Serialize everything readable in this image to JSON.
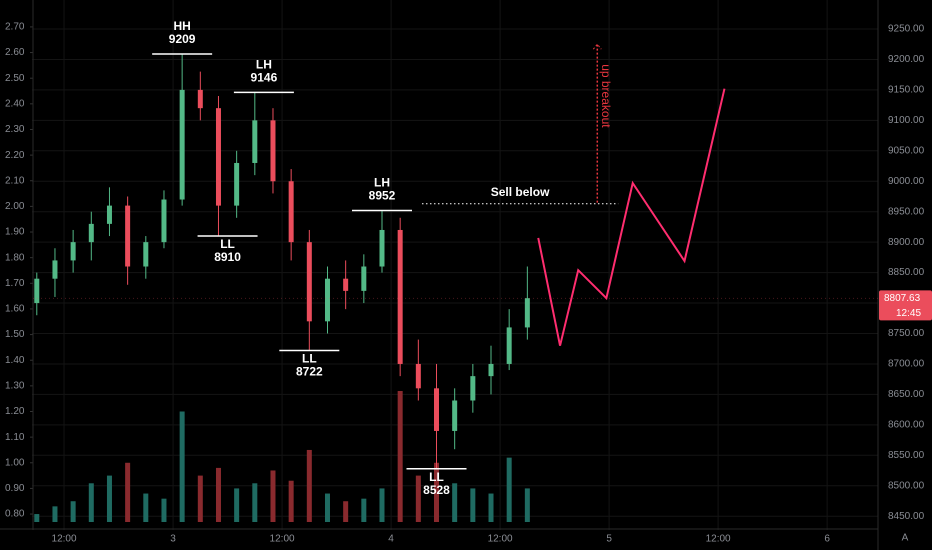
{
  "chart_data": {
    "type": "candlestick",
    "x": [
      -3,
      -1,
      1,
      3,
      5,
      7,
      9,
      11,
      13,
      15,
      17,
      19,
      21,
      23,
      25,
      27,
      29,
      31,
      33,
      35,
      37,
      39,
      41,
      43,
      45,
      47,
      49,
      51
    ],
    "open": [
      8800,
      8840,
      8870,
      8900,
      8930,
      8960,
      8860,
      8900,
      8970,
      9150,
      9120,
      8960,
      9030,
      9100,
      9000,
      8900,
      8770,
      8840,
      8820,
      8860,
      8920,
      8700,
      8660,
      8590,
      8640,
      8680,
      8700,
      8760
    ],
    "high": [
      8850,
      8890,
      8920,
      8950,
      8990,
      8975,
      8910,
      8985,
      9209,
      9180,
      9140,
      9050,
      9146,
      9120,
      9020,
      8920,
      8860,
      8870,
      8880,
      8952,
      8940,
      8740,
      8700,
      8660,
      8700,
      8730,
      8790,
      8860
    ],
    "low": [
      8780,
      8810,
      8850,
      8870,
      8910,
      8830,
      8840,
      8890,
      8960,
      9100,
      8910,
      8940,
      9010,
      8980,
      8870,
      8722,
      8750,
      8790,
      8800,
      8850,
      8680,
      8640,
      8528,
      8560,
      8620,
      8650,
      8690,
      8740
    ],
    "close": [
      8840,
      8870,
      8900,
      8930,
      8960,
      8860,
      8900,
      8970,
      9150,
      9120,
      8960,
      9030,
      9100,
      9000,
      8900,
      8770,
      8840,
      8820,
      8860,
      8920,
      8700,
      8660,
      8590,
      8640,
      8680,
      8700,
      8760,
      8808
    ],
    "volume": [
      0.8,
      0.83,
      0.85,
      0.92,
      0.95,
      1.0,
      0.88,
      0.86,
      1.2,
      0.95,
      0.98,
      0.9,
      0.92,
      0.97,
      0.93,
      1.05,
      0.88,
      0.85,
      0.86,
      0.9,
      1.28,
      0.95,
      1.0,
      0.92,
      0.9,
      0.88,
      1.02,
      0.9
    ],
    "up_color": "#53b987",
    "down_color": "#eb4d5c",
    "volume_up_color": "#1f6b62",
    "volume_down_color": "#8a2a2e",
    "xlim": [
      -7.05,
      89.6
    ],
    "xticks": [
      {
        "value": 0,
        "label": "12:00"
      },
      {
        "value": 12,
        "label": "3"
      },
      {
        "value": 24,
        "label": "12:00"
      },
      {
        "value": 36,
        "label": "4"
      },
      {
        "value": 48,
        "label": "12:00"
      },
      {
        "value": 60,
        "label": "5"
      },
      {
        "value": 72,
        "label": "12:00"
      },
      {
        "value": 84,
        "label": "6"
      }
    ],
    "ylim": [
      8440.5,
      9297.6
    ],
    "yticks": [
      {
        "value": 8450,
        "label": "8450.00"
      },
      {
        "value": 8500,
        "label": "8500.00"
      },
      {
        "value": 8550,
        "label": "8550.00"
      },
      {
        "value": 8600,
        "label": "8600.00"
      },
      {
        "value": 8650,
        "label": "8650.00"
      },
      {
        "value": 8700,
        "label": "8700.00"
      },
      {
        "value": 8750,
        "label": "8750.00"
      },
      {
        "value": 8800,
        "label": "8800.00"
      },
      {
        "value": 8850,
        "label": "8850.00"
      },
      {
        "value": 8900,
        "label": "8900.00"
      },
      {
        "value": 8950,
        "label": "8950.00"
      },
      {
        "value": 9000,
        "label": "9000.00"
      },
      {
        "value": 9050,
        "label": "9050.00"
      },
      {
        "value": 9100,
        "label": "9100.00"
      },
      {
        "value": 9150,
        "label": "9150.00"
      },
      {
        "value": 9200,
        "label": "9200.00"
      },
      {
        "value": 9250,
        "label": "9250.00"
      }
    ],
    "y2lim": [
      0.769,
      2.805
    ],
    "y2ticks": [
      {
        "value": 0.8,
        "label": "0.80"
      },
      {
        "value": 0.9,
        "label": "0.90"
      },
      {
        "value": 1.0,
        "label": "1.00"
      },
      {
        "value": 1.1,
        "label": "1.10"
      },
      {
        "value": 1.2,
        "label": "1.20"
      },
      {
        "value": 1.3,
        "label": "1.30"
      },
      {
        "value": 1.4,
        "label": "1.40"
      },
      {
        "value": 1.5,
        "label": "1.50"
      },
      {
        "value": 1.6,
        "label": "1.60"
      },
      {
        "value": 1.7,
        "label": "1.70"
      },
      {
        "value": 1.8,
        "label": "1.80"
      },
      {
        "value": 1.9,
        "label": "1.90"
      },
      {
        "value": 2.0,
        "label": "2.00"
      },
      {
        "value": 2.1,
        "label": "2.10"
      },
      {
        "value": 2.2,
        "label": "2.20"
      },
      {
        "value": 2.3,
        "label": "2.30"
      },
      {
        "value": 2.4,
        "label": "2.40"
      },
      {
        "value": 2.5,
        "label": "2.50"
      },
      {
        "value": 2.6,
        "label": "2.60"
      },
      {
        "value": 2.7,
        "label": "2.70"
      }
    ],
    "grid": true,
    "last_price": 8807.63,
    "countdown": "12:45",
    "last_price_color": "#eb4d5c",
    "scale_button": "A",
    "levels": [
      {
        "label": "HH",
        "price": 9209,
        "x": 13
      },
      {
        "label": "LL",
        "price": 8910,
        "x": 18
      },
      {
        "label": "LH",
        "price": 9146,
        "x": 22
      },
      {
        "label": "LL",
        "price": 8722,
        "x": 27
      },
      {
        "label": "LH",
        "price": 8952,
        "x": 35
      },
      {
        "label": "LL",
        "price": 8528,
        "x": 41
      }
    ],
    "sell_line": {
      "label": "Sell below",
      "price": 8963,
      "x": [
        39.4,
        61.0
      ]
    },
    "breakout": {
      "label": "up breakout",
      "x": 58.7,
      "price": [
        8965,
        9225
      ],
      "color": "#e8363f"
    },
    "projection": {
      "color": "#ff2d6f",
      "x": [
        52.2,
        54.6,
        56.6,
        59.7,
        62.6,
        68.3,
        72.7
      ],
      "values": [
        8907,
        8730,
        8854,
        8808,
        8997,
        8869,
        9152
      ]
    }
  }
}
